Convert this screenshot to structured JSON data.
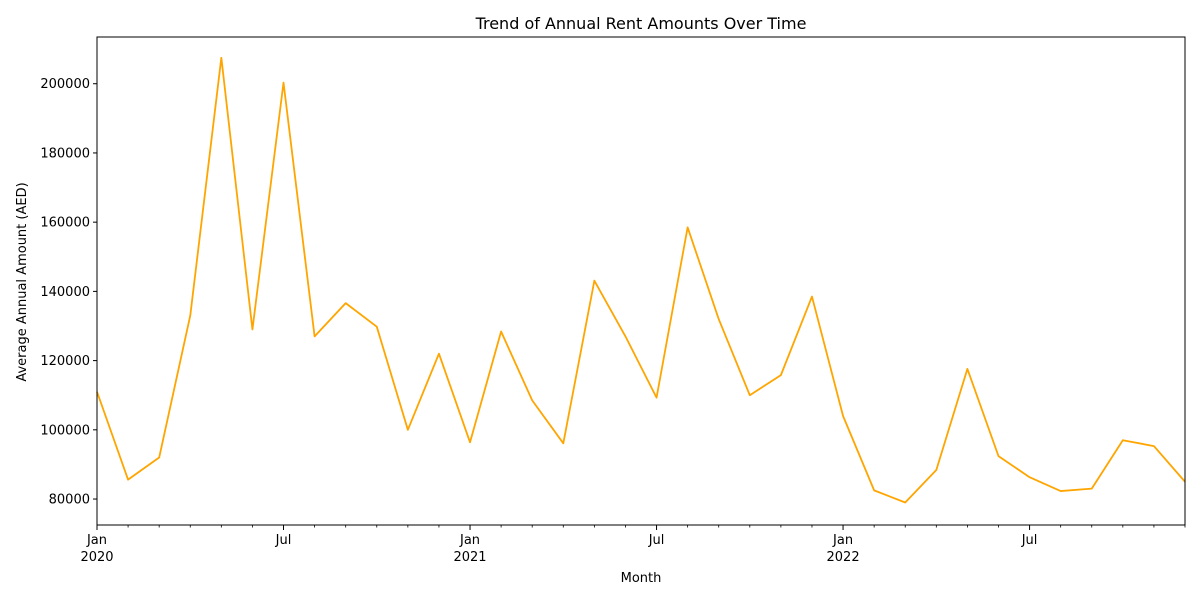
{
  "chart_data": {
    "type": "line",
    "title": "Trend of Annual Rent Amounts Over Time",
    "xlabel": "Month",
    "ylabel": "Average Annual Amount (AED)",
    "line_color": "#FFA500",
    "grid": false,
    "legend": "none",
    "ylim": [
      72500,
      213500
    ],
    "y_ticks": [
      80000,
      100000,
      120000,
      140000,
      160000,
      180000,
      200000
    ],
    "x_major_ticks": [
      {
        "index": 0,
        "label": "Jan",
        "year": "2020"
      },
      {
        "index": 6,
        "label": "Jul",
        "year": ""
      },
      {
        "index": 12,
        "label": "Jan",
        "year": "2021"
      },
      {
        "index": 18,
        "label": "Jul",
        "year": ""
      },
      {
        "index": 24,
        "label": "Jan",
        "year": "2022"
      },
      {
        "index": 30,
        "label": "Jul",
        "year": ""
      }
    ],
    "x": [
      "2020-01",
      "2020-02",
      "2020-03",
      "2020-04",
      "2020-05",
      "2020-06",
      "2020-07",
      "2020-08",
      "2020-09",
      "2020-10",
      "2020-11",
      "2020-12",
      "2021-01",
      "2021-02",
      "2021-03",
      "2021-04",
      "2021-05",
      "2021-06",
      "2021-07",
      "2021-08",
      "2021-09",
      "2021-10",
      "2021-11",
      "2021-12",
      "2022-01",
      "2022-02",
      "2022-03",
      "2022-04",
      "2022-05",
      "2022-06",
      "2022-07",
      "2022-08",
      "2022-09",
      "2022-10",
      "2022-11",
      "2022-12"
    ],
    "series": [
      {
        "values": [
          111000,
          85600,
          92000,
          133000,
          207500,
          129000,
          200300,
          127000,
          136600,
          129800,
          100000,
          122000,
          96400,
          128400,
          108500,
          96100,
          143100,
          127000,
          109300,
          158500,
          132000,
          110000,
          115800,
          138500,
          104000,
          82500,
          79000,
          88400,
          117600,
          92400,
          86300,
          82300,
          83000,
          97000,
          95300,
          85000
        ]
      }
    ]
  }
}
